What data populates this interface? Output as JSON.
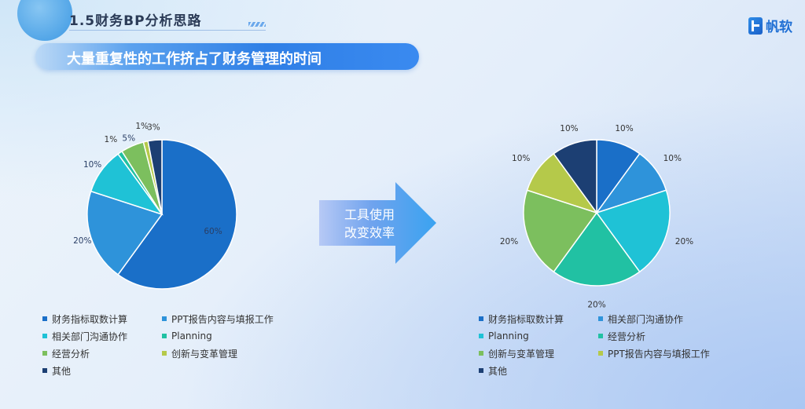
{
  "header": {
    "section_label": "1.5财务BP分析思路",
    "banner_title": "大量重复性的工作挤占了财务管理的时间",
    "logo_text": "帆软",
    "logo_icon": "fanruan-logo-icon"
  },
  "arrow": {
    "line1": "工具使用",
    "line2": "改变效率",
    "icon": "right-arrow-icon"
  },
  "chart_data": [
    {
      "type": "pie",
      "title": "",
      "categories": [
        "财务指标取数计算",
        "PPT报告内容与填报工作",
        "相关部门沟通协作",
        "Planning",
        "经营分析",
        "创新与变革管理",
        "其他"
      ],
      "values": [
        60,
        20,
        10,
        1,
        5,
        1,
        3
      ],
      "data_labels": [
        "60%",
        "20%",
        "10%",
        "1%",
        "5%",
        "1%",
        "3%"
      ],
      "colors": [
        "#1a6fc8",
        "#2e93da",
        "#1fc2d6",
        "#21c1a3",
        "#7cbf5e",
        "#b5c94a",
        "#1c3f73"
      ],
      "legend_position": "bottom"
    },
    {
      "type": "pie",
      "title": "",
      "categories": [
        "财务指标取数计算",
        "相关部门沟通协作",
        "Planning",
        "经营分析",
        "创新与变革管理",
        "PPT报告内容与填报工作",
        "其他"
      ],
      "values": [
        10,
        10,
        20,
        20,
        20,
        10,
        10
      ],
      "data_labels": [
        "10%",
        "10%",
        "20%",
        "20%",
        "20%",
        "10%",
        "10%"
      ],
      "colors": [
        "#1a6fc8",
        "#2e93da",
        "#1fc2d6",
        "#21c1a3",
        "#7cbf5e",
        "#b5c94a",
        "#1c3f73"
      ],
      "legend_position": "bottom"
    }
  ]
}
